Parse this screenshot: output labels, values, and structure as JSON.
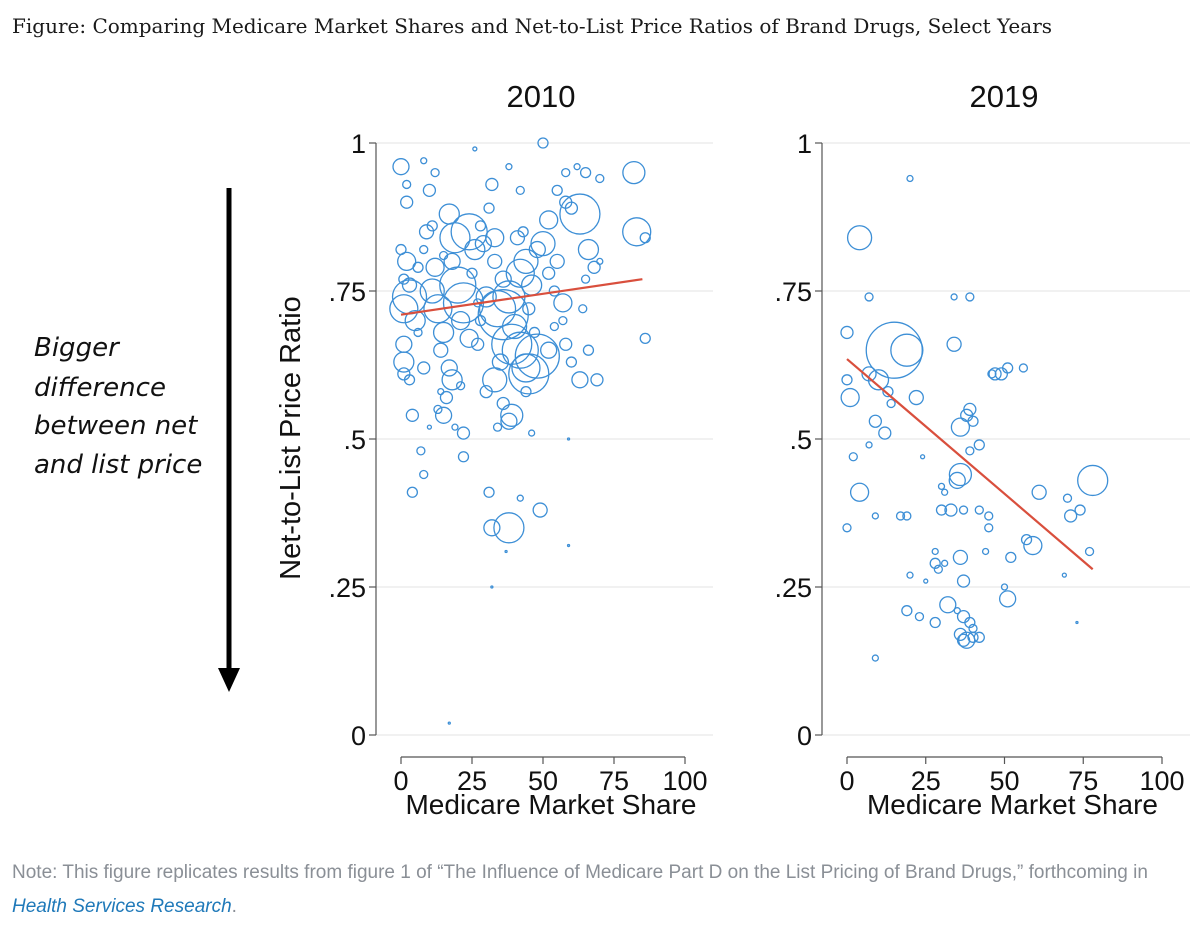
{
  "figure_title": "Figure: Comparing Medicare Market Shares and Net-to-List Price Ratios of Brand Drugs, Select Years",
  "annotation_lines": [
    "Bigger",
    "difference",
    "between net",
    "and list price"
  ],
  "note": {
    "text_before": "Note: This figure replicates results from figure 1 of “The Influence of Medicare Part D on the List Pricing of Brand Drugs,” forthcoming in ",
    "link_text": "Health Services Research",
    "text_after": "."
  },
  "colors": {
    "bubble": "#3d8fd6",
    "trend": "#d94f3d",
    "arrow": "#000000"
  },
  "chart_data": [
    {
      "type": "scatter",
      "title": "2010",
      "xlabel": "Medicare Market Share",
      "ylabel": "Net-to-List Price Ratio",
      "xlim": [
        0,
        100
      ],
      "ylim": [
        0,
        1
      ],
      "xticks": [
        0,
        25,
        50,
        75,
        100
      ],
      "yticks": [
        0,
        0.25,
        0.5,
        0.75,
        1
      ],
      "xtick_labels": [
        "0",
        "25",
        "50",
        "75",
        "100"
      ],
      "ytick_labels": [
        "0",
        ".25",
        ".5",
        ".75",
        "1"
      ],
      "grid": true,
      "trend": {
        "x": [
          0,
          85
        ],
        "y": [
          0.71,
          0.77
        ]
      },
      "points": [
        {
          "x": 0,
          "y": 0.96,
          "r": 8
        },
        {
          "x": 2,
          "y": 0.93,
          "r": 4
        },
        {
          "x": 2,
          "y": 0.9,
          "r": 6
        },
        {
          "x": 0,
          "y": 0.82,
          "r": 5
        },
        {
          "x": 2,
          "y": 0.8,
          "r": 9
        },
        {
          "x": 1,
          "y": 0.77,
          "r": 5
        },
        {
          "x": 3,
          "y": 0.76,
          "r": 7
        },
        {
          "x": 1,
          "y": 0.72,
          "r": 14
        },
        {
          "x": 3,
          "y": 0.74,
          "r": 17
        },
        {
          "x": 5,
          "y": 0.7,
          "r": 10
        },
        {
          "x": 1,
          "y": 0.66,
          "r": 8
        },
        {
          "x": 1,
          "y": 0.63,
          "r": 10
        },
        {
          "x": 1,
          "y": 0.61,
          "r": 6
        },
        {
          "x": 3,
          "y": 0.6,
          "r": 5
        },
        {
          "x": 4,
          "y": 0.54,
          "r": 6
        },
        {
          "x": 7,
          "y": 0.48,
          "r": 4
        },
        {
          "x": 4,
          "y": 0.41,
          "r": 5
        },
        {
          "x": 8,
          "y": 0.44,
          "r": 4
        },
        {
          "x": 8,
          "y": 0.97,
          "r": 3
        },
        {
          "x": 10,
          "y": 0.92,
          "r": 6
        },
        {
          "x": 12,
          "y": 0.95,
          "r": 4
        },
        {
          "x": 9,
          "y": 0.85,
          "r": 7
        },
        {
          "x": 8,
          "y": 0.82,
          "r": 4
        },
        {
          "x": 12,
          "y": 0.79,
          "r": 9
        },
        {
          "x": 11,
          "y": 0.75,
          "r": 12
        },
        {
          "x": 13,
          "y": 0.72,
          "r": 14
        },
        {
          "x": 15,
          "y": 0.68,
          "r": 10
        },
        {
          "x": 14,
          "y": 0.65,
          "r": 7
        },
        {
          "x": 17,
          "y": 0.88,
          "r": 10
        },
        {
          "x": 19,
          "y": 0.84,
          "r": 15
        },
        {
          "x": 18,
          "y": 0.8,
          "r": 8
        },
        {
          "x": 20,
          "y": 0.76,
          "r": 18
        },
        {
          "x": 22,
          "y": 0.73,
          "r": 20
        },
        {
          "x": 21,
          "y": 0.7,
          "r": 9
        },
        {
          "x": 17,
          "y": 0.62,
          "r": 8
        },
        {
          "x": 16,
          "y": 0.57,
          "r": 6
        },
        {
          "x": 13,
          "y": 0.55,
          "r": 4
        },
        {
          "x": 15,
          "y": 0.54,
          "r": 8
        },
        {
          "x": 21,
          "y": 0.59,
          "r": 4
        },
        {
          "x": 22,
          "y": 0.51,
          "r": 6
        },
        {
          "x": 22,
          "y": 0.47,
          "r": 5
        },
        {
          "x": 24,
          "y": 0.85,
          "r": 18
        },
        {
          "x": 26,
          "y": 0.82,
          "r": 10
        },
        {
          "x": 25,
          "y": 0.78,
          "r": 5
        },
        {
          "x": 28,
          "y": 0.86,
          "r": 5
        },
        {
          "x": 29,
          "y": 0.83,
          "r": 8
        },
        {
          "x": 31,
          "y": 0.89,
          "r": 5
        },
        {
          "x": 32,
          "y": 0.93,
          "r": 6
        },
        {
          "x": 33,
          "y": 0.84,
          "r": 9
        },
        {
          "x": 33,
          "y": 0.8,
          "r": 7
        },
        {
          "x": 30,
          "y": 0.74,
          "r": 10
        },
        {
          "x": 34,
          "y": 0.72,
          "r": 18
        },
        {
          "x": 36,
          "y": 0.71,
          "r": 25
        },
        {
          "x": 38,
          "y": 0.74,
          "r": 16
        },
        {
          "x": 40,
          "y": 0.69,
          "r": 12
        },
        {
          "x": 39,
          "y": 0.66,
          "r": 20
        },
        {
          "x": 42,
          "y": 0.65,
          "r": 18
        },
        {
          "x": 44,
          "y": 0.62,
          "r": 14
        },
        {
          "x": 48,
          "y": 0.64,
          "r": 22
        },
        {
          "x": 45,
          "y": 0.61,
          "r": 20
        },
        {
          "x": 35,
          "y": 0.63,
          "r": 8
        },
        {
          "x": 33,
          "y": 0.6,
          "r": 12
        },
        {
          "x": 30,
          "y": 0.58,
          "r": 6
        },
        {
          "x": 36,
          "y": 0.56,
          "r": 6
        },
        {
          "x": 38,
          "y": 0.53,
          "r": 8
        },
        {
          "x": 39,
          "y": 0.54,
          "r": 11
        },
        {
          "x": 34,
          "y": 0.52,
          "r": 4
        },
        {
          "x": 42,
          "y": 0.78,
          "r": 14
        },
        {
          "x": 44,
          "y": 0.8,
          "r": 12
        },
        {
          "x": 46,
          "y": 0.76,
          "r": 10
        },
        {
          "x": 48,
          "y": 0.82,
          "r": 8
        },
        {
          "x": 50,
          "y": 0.83,
          "r": 12
        },
        {
          "x": 52,
          "y": 0.78,
          "r": 6
        },
        {
          "x": 55,
          "y": 0.8,
          "r": 7
        },
        {
          "x": 52,
          "y": 0.87,
          "r": 9
        },
        {
          "x": 55,
          "y": 0.92,
          "r": 5
        },
        {
          "x": 58,
          "y": 0.9,
          "r": 6
        },
        {
          "x": 60,
          "y": 0.89,
          "r": 6
        },
        {
          "x": 63,
          "y": 0.88,
          "r": 20
        },
        {
          "x": 66,
          "y": 0.82,
          "r": 10
        },
        {
          "x": 68,
          "y": 0.79,
          "r": 6
        },
        {
          "x": 70,
          "y": 0.8,
          "r": 3
        },
        {
          "x": 58,
          "y": 0.95,
          "r": 4
        },
        {
          "x": 62,
          "y": 0.96,
          "r": 3
        },
        {
          "x": 65,
          "y": 0.95,
          "r": 5
        },
        {
          "x": 70,
          "y": 0.94,
          "r": 4
        },
        {
          "x": 82,
          "y": 0.95,
          "r": 11
        },
        {
          "x": 83,
          "y": 0.85,
          "r": 14
        },
        {
          "x": 86,
          "y": 0.84,
          "r": 5
        },
        {
          "x": 86,
          "y": 0.67,
          "r": 5
        },
        {
          "x": 50,
          "y": 1.0,
          "r": 5
        },
        {
          "x": 42,
          "y": 0.92,
          "r": 4
        },
        {
          "x": 38,
          "y": 0.96,
          "r": 3
        },
        {
          "x": 26,
          "y": 0.99,
          "r": 2
        },
        {
          "x": 57,
          "y": 0.7,
          "r": 4
        },
        {
          "x": 58,
          "y": 0.66,
          "r": 6
        },
        {
          "x": 60,
          "y": 0.63,
          "r": 5
        },
        {
          "x": 63,
          "y": 0.6,
          "r": 8
        },
        {
          "x": 54,
          "y": 0.75,
          "r": 5
        },
        {
          "x": 57,
          "y": 0.73,
          "r": 9
        },
        {
          "x": 54,
          "y": 0.69,
          "r": 4
        },
        {
          "x": 52,
          "y": 0.65,
          "r": 8
        },
        {
          "x": 31,
          "y": 0.41,
          "r": 5
        },
        {
          "x": 42,
          "y": 0.4,
          "r": 3
        },
        {
          "x": 49,
          "y": 0.38,
          "r": 7
        },
        {
          "x": 32,
          "y": 0.35,
          "r": 8
        },
        {
          "x": 38,
          "y": 0.35,
          "r": 15
        },
        {
          "x": 37,
          "y": 0.31,
          "r": 1
        },
        {
          "x": 32,
          "y": 0.25,
          "r": 1
        },
        {
          "x": 17,
          "y": 0.02,
          "r": 1
        },
        {
          "x": 46,
          "y": 0.51,
          "r": 3
        },
        {
          "x": 59,
          "y": 0.32,
          "r": 1
        },
        {
          "x": 59,
          "y": 0.5,
          "r": 1
        },
        {
          "x": 44,
          "y": 0.58,
          "r": 5
        },
        {
          "x": 27,
          "y": 0.66,
          "r": 6
        },
        {
          "x": 28,
          "y": 0.7,
          "r": 5
        },
        {
          "x": 24,
          "y": 0.67,
          "r": 9
        },
        {
          "x": 8,
          "y": 0.62,
          "r": 6
        },
        {
          "x": 6,
          "y": 0.68,
          "r": 4
        },
        {
          "x": 6,
          "y": 0.79,
          "r": 5
        },
        {
          "x": 15,
          "y": 0.81,
          "r": 4
        },
        {
          "x": 27,
          "y": 0.73,
          "r": 4
        },
        {
          "x": 41,
          "y": 0.84,
          "r": 7
        },
        {
          "x": 43,
          "y": 0.85,
          "r": 5
        },
        {
          "x": 45,
          "y": 0.72,
          "r": 6
        },
        {
          "x": 36,
          "y": 0.77,
          "r": 8
        },
        {
          "x": 47,
          "y": 0.68,
          "r": 5
        },
        {
          "x": 65,
          "y": 0.77,
          "r": 4
        },
        {
          "x": 64,
          "y": 0.72,
          "r": 4
        },
        {
          "x": 69,
          "y": 0.6,
          "r": 6
        },
        {
          "x": 66,
          "y": 0.65,
          "r": 5
        },
        {
          "x": 18,
          "y": 0.6,
          "r": 10
        },
        {
          "x": 11,
          "y": 0.86,
          "r": 5
        },
        {
          "x": 14,
          "y": 0.58,
          "r": 3
        },
        {
          "x": 10,
          "y": 0.52,
          "r": 2
        },
        {
          "x": 19,
          "y": 0.52,
          "r": 3
        }
      ]
    },
    {
      "type": "scatter",
      "title": "2019",
      "xlabel": "Medicare Market Share",
      "ylabel": "",
      "xlim": [
        0,
        100
      ],
      "ylim": [
        0,
        1
      ],
      "xticks": [
        0,
        25,
        50,
        75,
        100
      ],
      "yticks": [
        0,
        0.25,
        0.5,
        0.75,
        1
      ],
      "xtick_labels": [
        "0",
        "25",
        "50",
        "75",
        "100"
      ],
      "ytick_labels": [
        "0",
        ".25",
        ".5",
        ".75",
        "1"
      ],
      "grid": true,
      "trend": {
        "x": [
          0,
          78
        ],
        "y": [
          0.635,
          0.28
        ]
      },
      "points": [
        {
          "x": 4,
          "y": 0.84,
          "r": 12
        },
        {
          "x": 20,
          "y": 0.94,
          "r": 3
        },
        {
          "x": 7,
          "y": 0.74,
          "r": 4
        },
        {
          "x": 0,
          "y": 0.68,
          "r": 6
        },
        {
          "x": 0,
          "y": 0.6,
          "r": 5
        },
        {
          "x": 1,
          "y": 0.57,
          "r": 9
        },
        {
          "x": 7,
          "y": 0.61,
          "r": 7
        },
        {
          "x": 10,
          "y": 0.6,
          "r": 10
        },
        {
          "x": 15,
          "y": 0.65,
          "r": 28
        },
        {
          "x": 19,
          "y": 0.65,
          "r": 16
        },
        {
          "x": 13,
          "y": 0.58,
          "r": 5
        },
        {
          "x": 14,
          "y": 0.56,
          "r": 4
        },
        {
          "x": 9,
          "y": 0.53,
          "r": 6
        },
        {
          "x": 12,
          "y": 0.51,
          "r": 6
        },
        {
          "x": 7,
          "y": 0.49,
          "r": 3
        },
        {
          "x": 2,
          "y": 0.47,
          "r": 4
        },
        {
          "x": 4,
          "y": 0.41,
          "r": 9
        },
        {
          "x": 0,
          "y": 0.35,
          "r": 4
        },
        {
          "x": 9,
          "y": 0.37,
          "r": 3
        },
        {
          "x": 17,
          "y": 0.37,
          "r": 4
        },
        {
          "x": 19,
          "y": 0.37,
          "r": 4
        },
        {
          "x": 22,
          "y": 0.57,
          "r": 7
        },
        {
          "x": 34,
          "y": 0.66,
          "r": 7
        },
        {
          "x": 34,
          "y": 0.74,
          "r": 3
        },
        {
          "x": 39,
          "y": 0.74,
          "r": 4
        },
        {
          "x": 36,
          "y": 0.52,
          "r": 9
        },
        {
          "x": 38,
          "y": 0.54,
          "r": 6
        },
        {
          "x": 39,
          "y": 0.55,
          "r": 6
        },
        {
          "x": 40,
          "y": 0.53,
          "r": 5
        },
        {
          "x": 39,
          "y": 0.48,
          "r": 4
        },
        {
          "x": 42,
          "y": 0.49,
          "r": 5
        },
        {
          "x": 36,
          "y": 0.44,
          "r": 11
        },
        {
          "x": 35,
          "y": 0.43,
          "r": 8
        },
        {
          "x": 30,
          "y": 0.42,
          "r": 3
        },
        {
          "x": 31,
          "y": 0.41,
          "r": 3
        },
        {
          "x": 30,
          "y": 0.38,
          "r": 5
        },
        {
          "x": 33,
          "y": 0.38,
          "r": 6
        },
        {
          "x": 37,
          "y": 0.38,
          "r": 4
        },
        {
          "x": 45,
          "y": 0.37,
          "r": 4
        },
        {
          "x": 45,
          "y": 0.35,
          "r": 4
        },
        {
          "x": 28,
          "y": 0.31,
          "r": 3
        },
        {
          "x": 28,
          "y": 0.29,
          "r": 5
        },
        {
          "x": 29,
          "y": 0.28,
          "r": 4
        },
        {
          "x": 36,
          "y": 0.3,
          "r": 7
        },
        {
          "x": 37,
          "y": 0.26,
          "r": 6
        },
        {
          "x": 32,
          "y": 0.22,
          "r": 8
        },
        {
          "x": 20,
          "y": 0.27,
          "r": 3
        },
        {
          "x": 19,
          "y": 0.21,
          "r": 5
        },
        {
          "x": 23,
          "y": 0.2,
          "r": 4
        },
        {
          "x": 28,
          "y": 0.19,
          "r": 5
        },
        {
          "x": 35,
          "y": 0.21,
          "r": 3
        },
        {
          "x": 37,
          "y": 0.2,
          "r": 6
        },
        {
          "x": 39,
          "y": 0.19,
          "r": 5
        },
        {
          "x": 40,
          "y": 0.18,
          "r": 4
        },
        {
          "x": 36,
          "y": 0.17,
          "r": 6
        },
        {
          "x": 37,
          "y": 0.16,
          "r": 6
        },
        {
          "x": 38,
          "y": 0.16,
          "r": 8
        },
        {
          "x": 40,
          "y": 0.165,
          "r": 5
        },
        {
          "x": 42,
          "y": 0.165,
          "r": 5
        },
        {
          "x": 44,
          "y": 0.31,
          "r": 3
        },
        {
          "x": 47,
          "y": 0.61,
          "r": 6
        },
        {
          "x": 49,
          "y": 0.61,
          "r": 6
        },
        {
          "x": 51,
          "y": 0.62,
          "r": 5
        },
        {
          "x": 56,
          "y": 0.62,
          "r": 4
        },
        {
          "x": 46,
          "y": 0.61,
          "r": 4
        },
        {
          "x": 52,
          "y": 0.3,
          "r": 5
        },
        {
          "x": 50,
          "y": 0.25,
          "r": 3
        },
        {
          "x": 51,
          "y": 0.23,
          "r": 8
        },
        {
          "x": 57,
          "y": 0.33,
          "r": 5
        },
        {
          "x": 59,
          "y": 0.32,
          "r": 9
        },
        {
          "x": 61,
          "y": 0.41,
          "r": 7
        },
        {
          "x": 70,
          "y": 0.4,
          "r": 4
        },
        {
          "x": 71,
          "y": 0.37,
          "r": 6
        },
        {
          "x": 74,
          "y": 0.38,
          "r": 5
        },
        {
          "x": 77,
          "y": 0.31,
          "r": 4
        },
        {
          "x": 78,
          "y": 0.43,
          "r": 15
        },
        {
          "x": 69,
          "y": 0.27,
          "r": 2
        },
        {
          "x": 73,
          "y": 0.19,
          "r": 1
        },
        {
          "x": 9,
          "y": 0.13,
          "r": 3
        },
        {
          "x": 24,
          "y": 0.47,
          "r": 2
        },
        {
          "x": 25,
          "y": 0.26,
          "r": 2
        },
        {
          "x": 31,
          "y": 0.29,
          "r": 3
        },
        {
          "x": 42,
          "y": 0.38,
          "r": 4
        }
      ]
    }
  ]
}
